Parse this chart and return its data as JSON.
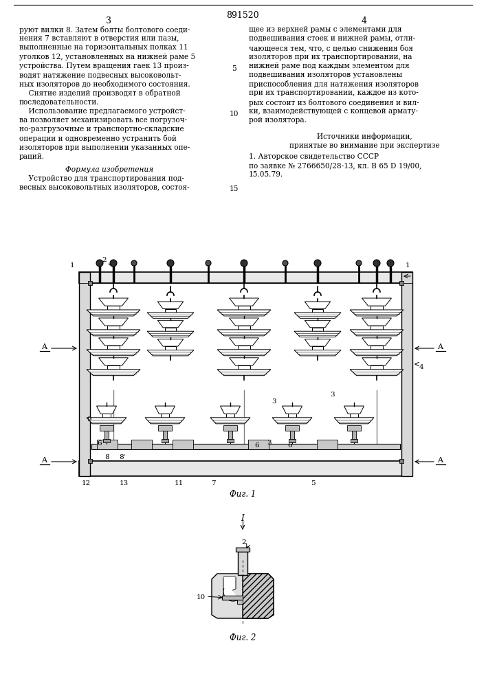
{
  "patent_number": "891520",
  "page_left": "3",
  "page_right": "4",
  "bg_color": "#ffffff",
  "left_column_text": [
    "руют вилки 8. Затем болты болтового соеди-",
    "нения 7 вставляют в отверстия или пазы,",
    "выполненные на горизонтальных полках 11",
    "уголков 12, установленных на нижней раме 5",
    "устройства. Путем вращения гаек 13 произ-",
    "водят натяжение подвесных высоковольт-",
    "ных изоляторов до необходимого состояния.",
    "    Снятие изделий производят в обратной",
    "последовательности.",
    "    Использование предлагаемого устройст-",
    "ва позволяет механизировать все погрузоч-",
    "но-разгрузочные и транспортно-складские",
    "операции и одновременно устранить бой",
    "изоляторов при выполнении указанных опе-",
    "раций."
  ],
  "formula_header": "Формула изобретения",
  "formula_text": [
    "    Устройство для транспортирования под-",
    "весных высоковольтных изоляторов, состоя-"
  ],
  "right_column_text": [
    "щее из верхней рамы с элементами для",
    "подвешивания стоек и нижней рамы, отли-",
    "чающееся тем, что, с целью снижения боя",
    "изоляторов при их транспортировании, на",
    "нижней раме под каждым элементом для",
    "подвешивания изоляторов установлены",
    "приспособления для натяжения изоляторов",
    "при их транспортировании, каждое из кото-",
    "рых состоит из болтового соединения и вил-",
    "ки, взаимодействующей с концевой армату-",
    "рой изолятора."
  ],
  "sources_header": "Источники информации,",
  "sources_subheader": "принятые во внимание при экспертизе",
  "source_text": "1. Авторское свидетельство СССР",
  "source_text2": "по заявке № 2766650/28-13, кл. В 65 D 19/00,",
  "source_text3": "15.05.79.",
  "fig1_label": "Фиг. 1",
  "fig2_label": "Фиг. 2",
  "fig_I_label": "I"
}
